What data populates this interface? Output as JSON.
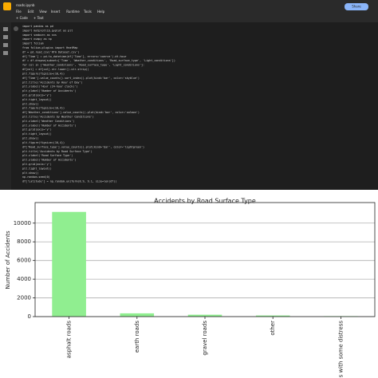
{
  "notebook": {
    "title": "roads.ipynb",
    "menu": [
      "File",
      "Edit",
      "View",
      "Insert",
      "Runtime",
      "Tools",
      "Help"
    ],
    "toolbar": [
      "+ Code",
      "+ Text"
    ],
    "share": "Share",
    "code_lines": [
      "import pandas as pd",
      "import matplotlib.pyplot as plt",
      "import seaborn as sns",
      "import numpy as np",
      "import folium",
      "from folium.plugins import HeatMap",
      "df = pd.read_csv('RTA Dataset.csv')",
      "df['Time'] = pd.to_datetime(df['Time'], errors='coerce').dt.hour",
      "df = df.dropna(subset=['Time', 'Weather_conditions', 'Road_surface_type', 'Light_conditions'])",
      "for col in ['Weather_conditions', 'Road_surface_type', 'Light_conditions']:",
      "    df[col] = df[col].str.lower().str.strip()",
      "plt.figure(figsize=(10,4))",
      "df['Time'].value_counts().sort_index().plot(kind='bar', color='skyblue')",
      "plt.title('Accidents by Hour of Day')",
      "plt.xlabel('Hour (24-hour clock)')",
      "plt.ylabel('Number of Accidents')",
      "plt.grid(axis='y')",
      "plt.tight_layout()",
      "plt.show()",
      "plt.figure(figsize=(10,4))",
      "df['Weather_conditions'].value_counts().plot(kind='bar', color='salmon')",
      "plt.title('Accidents by Weather Conditions')",
      "plt.xlabel('Weather Conditions')",
      "plt.ylabel('Number of Accidents')",
      "plt.grid(axis='y')",
      "plt.tight_layout()",
      "plt.show()",
      "plt.figure(figsize=(10,4))",
      "df['Road_surface_type'].value_counts().plot(kind='bar', color='lightgreen')",
      "plt.title('Accidents by Road Surface Type')",
      "plt.xlabel('Road Surface Type')",
      "plt.ylabel('Number of Accidents')",
      "plt.grid(axis='y')",
      "plt.tight_layout()",
      "plt.show()",
      "np.random.seed(0)",
      "df['Latitude'] = np.random.uniform(8.9, 9.1, size=len(df))"
    ]
  },
  "chart_data": {
    "type": "bar",
    "title": "Accidents by Road Surface Type",
    "ylabel": "Number of Accidents",
    "categories": [
      "asphalt roads",
      "earth roads",
      "gravel roads",
      "other",
      "roads with some distress"
    ],
    "values": [
      11200,
      350,
      200,
      120,
      50
    ],
    "color": "#90ee90",
    "ylim": [
      0,
      12200
    ],
    "yticks": [
      0,
      2000,
      4000,
      6000,
      8000,
      10000
    ],
    "grid": true
  }
}
